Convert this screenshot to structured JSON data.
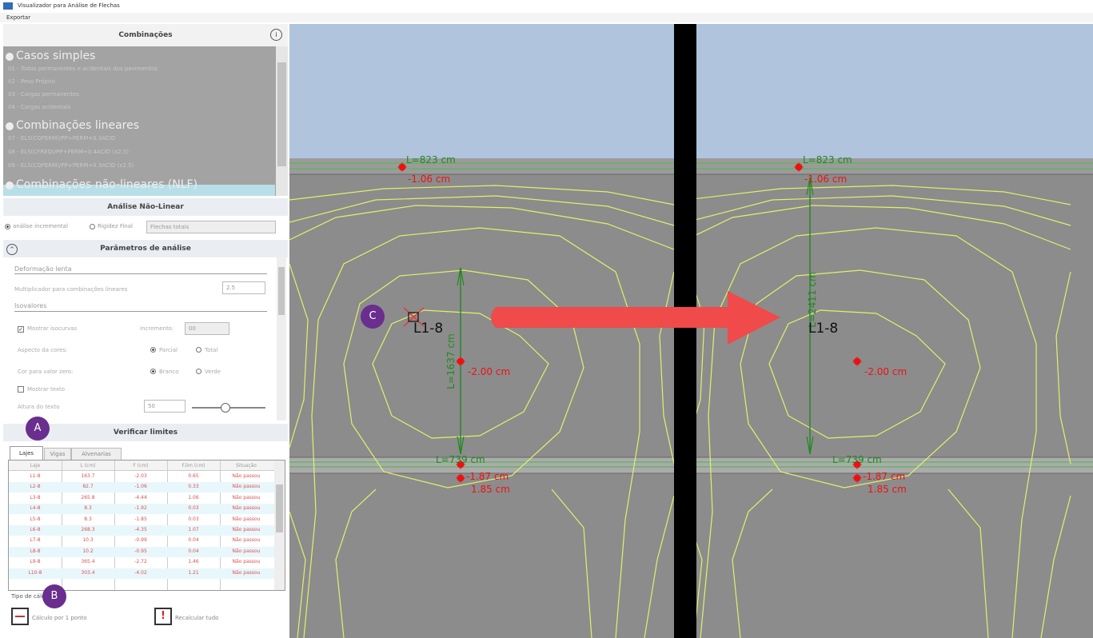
{
  "window": {
    "title": "Visualizador para Análise de Flechas",
    "menu": [
      "Exportar"
    ]
  },
  "combinations": {
    "header": "Combinações",
    "groups": [
      {
        "name": "Casos simples",
        "items": [
          "01 - Todas permanentes e acidentais dos pavimentos",
          "02 - Peso Próprio",
          "03 - Cargas permanentes",
          "04 - Cargas acidentais"
        ]
      },
      {
        "name": "Combinações lineares",
        "items": [
          "07 - ELS(CQPERM)/PP+PERM+0.3ACID",
          "08 - ELS(CFREQ)/PP+PERM+0.4ACID (x2.5)",
          "09 - ELS(CQPERM)/PP+PERM+0.3ACID (x2.5)"
        ]
      },
      {
        "name": "Combinações não-lineares (NLF)",
        "items": []
      }
    ]
  },
  "nonlinear": {
    "header": "Análise Não-Linear",
    "options": [
      "análise incremental",
      "Rigidez Final"
    ],
    "dropdown": "Flechas totais"
  },
  "parameters": {
    "header": "Parâmetros de análise",
    "creep_title": "Deformação lenta",
    "multiplier_label": "Multiplicador para combinações lineares",
    "multiplier": 2.5,
    "isovalues_title": "Isovalores",
    "show_isocurves": "Mostrar isocurvas",
    "increment_label": "Incremento:",
    "increment": "00",
    "color_aspect_label": "Aspecto da cores:",
    "color_aspect_options": [
      "Parcial",
      "Total"
    ],
    "zero_color_label": "Cor para valor zero:",
    "zero_color_options": [
      "Branco",
      "Verde"
    ],
    "show_text": "Mostrar texto",
    "text_height_label": "Altura do texto",
    "text_height": 50
  },
  "limits": {
    "header": "Verificar limites",
    "tabs": [
      "Lajes",
      "Vigas",
      "Alvenarias"
    ],
    "table": {
      "columns": [
        "Laje",
        "L (cm)",
        "F (cm)",
        "F.lim (cm)",
        "Situação"
      ],
      "rows": [
        [
          "L1-8",
          "163.7",
          "-2.03",
          "0.65",
          "Não passou"
        ],
        [
          "L2-8",
          "82.7",
          "-1.06",
          "0.33",
          "Não passou"
        ],
        [
          "L3-8",
          "265.8",
          "-4.44",
          "1.06",
          "Não passou"
        ],
        [
          "L4-8",
          "8.3",
          "-1.92",
          "0.03",
          "Não passou"
        ],
        [
          "L5-8",
          "8.3",
          "-1.85",
          "0.03",
          "Não passou"
        ],
        [
          "L6-8",
          "268.3",
          "-4.35",
          "1.07",
          "Não passou"
        ],
        [
          "L7-8",
          "10.3",
          "-0.99",
          "0.04",
          "Não passou"
        ],
        [
          "L8-8",
          "10.2",
          "-0.95",
          "0.04",
          "Não passou"
        ],
        [
          "L9-8",
          "365.4",
          "-2.72",
          "1.46",
          "Não passou"
        ],
        [
          "L10-8",
          "303.4",
          "-4.02",
          "1.21",
          "Não passou"
        ]
      ]
    }
  },
  "calculation": {
    "title": "Tipo de cálculo",
    "buttons": [
      "Cálculo por 1 ponto",
      "Recalcular tudo"
    ]
  },
  "callouts": [
    "A",
    "B",
    "C"
  ],
  "views": [
    {
      "top_length": "L=823 cm",
      "top_deflection": "-1.06 cm",
      "span_length": "L=1637 cm",
      "slab": "L1-8",
      "center_deflection": "-2.00 cm",
      "bottom_length": "L=739 cm",
      "bottom_deflection_1": "-1.87 cm",
      "bottom_deflection_2": "1.85 cm"
    },
    {
      "top_length": "L=823 cm",
      "top_deflection": "-1.06 cm",
      "span_length": "L=2411 cm",
      "slab": "L1-8",
      "center_deflection": "-2.00 cm",
      "bottom_length": "L=739 cm",
      "bottom_deflection_1": "-1.87 cm",
      "bottom_deflection_2": "1.85 cm"
    }
  ]
}
